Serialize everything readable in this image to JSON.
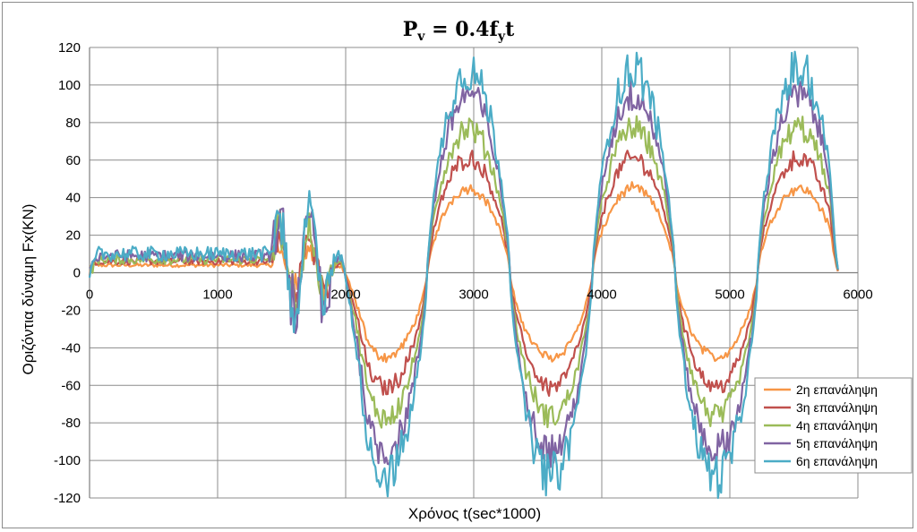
{
  "chart_data": {
    "type": "line",
    "title": {
      "main": "P",
      "sub_v": "v",
      "mid": " = 0.4f",
      "sub_y": "y",
      "tail": "t"
    },
    "xlabel": "Χρόνος t(sec*1000)",
    "ylabel": "Οριζόντια δύναμη Fx(KN)",
    "xlim": [
      0,
      6000
    ],
    "ylim": [
      -120,
      120
    ],
    "xticks": [
      0,
      1000,
      2000,
      3000,
      4000,
      5000,
      6000
    ],
    "yticks": [
      120,
      100,
      80,
      60,
      40,
      20,
      0,
      -20,
      -40,
      -60,
      -80,
      -100,
      -120
    ],
    "grid": true,
    "legend_position": "bottom-right",
    "series": [
      {
        "name": "2η επανάληψη",
        "color": "#f79646",
        "amplitude": 45,
        "steady": 4
      },
      {
        "name": "3η επανάληψη",
        "color": "#c0504d",
        "amplitude": 61,
        "steady": 6
      },
      {
        "name": "4η επανάληψη",
        "color": "#9bbb59",
        "amplitude": 77,
        "steady": 7
      },
      {
        "name": "5η επανάληψη",
        "color": "#8064a2",
        "amplitude": 95,
        "steady": 9
      },
      {
        "name": "6η επανάληψη",
        "color": "#4bacc6",
        "amplitude": 108,
        "steady": 10
      }
    ],
    "x_end": 5850,
    "period": 1290,
    "peaks_x": [
      2960,
      4250,
      5540
    ],
    "troughs_x": [
      2320,
      3610,
      4900
    ]
  }
}
